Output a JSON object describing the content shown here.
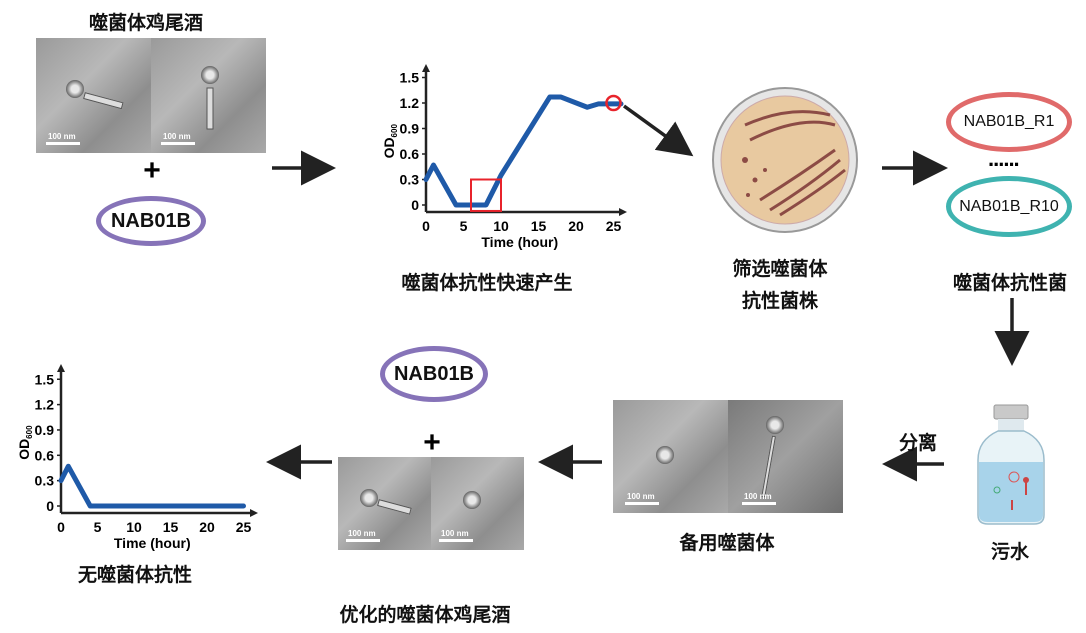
{
  "cocktail_title": "噬菌体鸡尾酒",
  "scale_bar": "100 nm",
  "plus": "+",
  "strain": "NAB01B",
  "caption_resistance": "噬菌体抗性快速产生",
  "caption_screen": [
    "筛选噬菌体",
    "抗性菌株"
  ],
  "resistant_strains": {
    "first": "NAB01B_R1",
    "dots": "......",
    "last": "NAB01B_R10",
    "caption": "噬菌体抗性菌"
  },
  "sewage": "污水",
  "isolate": "分离",
  "caption_backup": "备用噬菌体",
  "caption_optimized": "优化的噬菌体鸡尾酒",
  "caption_no_resistance": "无噬菌体抗性",
  "colors": {
    "line": "#1f5aa8",
    "highlight": "#e8232b",
    "strain_purple": "#8673b8",
    "r1_red": "#e06a6a",
    "r10_teal": "#3fb3b0"
  },
  "chart_data": [
    {
      "type": "line",
      "xlabel": "Time (hour)",
      "ylabel": "OD",
      "ylabel_sub": "600",
      "xticks": [
        "0",
        "5",
        "10",
        "15",
        "20",
        "25"
      ],
      "yticks": [
        "0",
        "0.3",
        "0.6",
        "0.9",
        "1.2",
        "1.5"
      ],
      "xlim": [
        0,
        26
      ],
      "ylim": [
        0,
        1.5
      ],
      "x": [
        0,
        1,
        4,
        8,
        10,
        16.5,
        18,
        21.5,
        23,
        26
      ],
      "y": [
        0.3,
        0.47,
        0,
        0,
        0.35,
        1.27,
        1.27,
        1.15,
        1.19,
        1.19
      ],
      "highlight_box": {
        "x": [
          6,
          10
        ],
        "y": [
          -0.07,
          0.3
        ]
      },
      "highlight_circle": {
        "x": 25,
        "y": 1.2
      }
    },
    {
      "type": "line",
      "xlabel": "Time (hour)",
      "ylabel": "OD",
      "ylabel_sub": "600",
      "xticks": [
        "0",
        "5",
        "10",
        "15",
        "20",
        "25"
      ],
      "yticks": [
        "0",
        "0.3",
        "0.6",
        "0.9",
        "1.2",
        "1.5"
      ],
      "xlim": [
        0,
        25
      ],
      "ylim": [
        0,
        1.5
      ],
      "x": [
        0,
        1,
        4,
        25
      ],
      "y": [
        0.3,
        0.47,
        0,
        0
      ]
    }
  ]
}
